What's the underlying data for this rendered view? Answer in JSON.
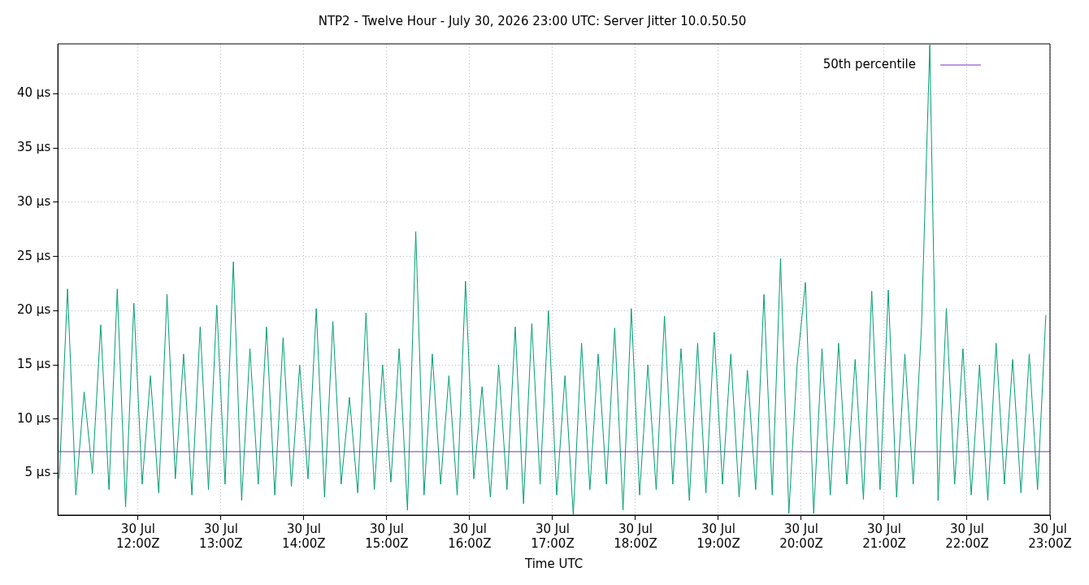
{
  "chart_data": {
    "type": "line",
    "title": "NTP2 - Twelve Hour - July 30, 2026 23:00 UTC: Server Jitter 10.0.50.50",
    "xlabel": "Time UTC",
    "series": [
      {
        "color": "#009e73",
        "x": [
          "2026-07-30T11:03",
          "2026-07-30T11:09",
          "2026-07-30T11:15",
          "2026-07-30T11:21",
          "2026-07-30T11:27",
          "2026-07-30T11:33",
          "2026-07-30T11:39",
          "2026-07-30T11:45",
          "2026-07-30T11:51",
          "2026-07-30T11:57",
          "2026-07-30T12:03",
          "2026-07-30T12:09",
          "2026-07-30T12:15",
          "2026-07-30T12:21",
          "2026-07-30T12:27",
          "2026-07-30T12:33",
          "2026-07-30T12:39",
          "2026-07-30T12:45",
          "2026-07-30T12:51",
          "2026-07-30T12:57",
          "2026-07-30T13:03",
          "2026-07-30T13:09",
          "2026-07-30T13:15",
          "2026-07-30T13:21",
          "2026-07-30T13:27",
          "2026-07-30T13:33",
          "2026-07-30T13:39",
          "2026-07-30T13:45",
          "2026-07-30T13:51",
          "2026-07-30T13:57",
          "2026-07-30T14:03",
          "2026-07-30T14:09",
          "2026-07-30T14:15",
          "2026-07-30T14:21",
          "2026-07-30T14:27",
          "2026-07-30T14:33",
          "2026-07-30T14:39",
          "2026-07-30T14:45",
          "2026-07-30T14:51",
          "2026-07-30T14:57",
          "2026-07-30T15:03",
          "2026-07-30T15:09",
          "2026-07-30T15:15",
          "2026-07-30T15:21",
          "2026-07-30T15:27",
          "2026-07-30T15:33",
          "2026-07-30T15:39",
          "2026-07-30T15:45",
          "2026-07-30T15:51",
          "2026-07-30T15:57",
          "2026-07-30T16:03",
          "2026-07-30T16:09",
          "2026-07-30T16:15",
          "2026-07-30T16:21",
          "2026-07-30T16:27",
          "2026-07-30T16:33",
          "2026-07-30T16:39",
          "2026-07-30T16:45",
          "2026-07-30T16:51",
          "2026-07-30T16:57",
          "2026-07-30T17:03",
          "2026-07-30T17:09",
          "2026-07-30T17:15",
          "2026-07-30T17:21",
          "2026-07-30T17:27",
          "2026-07-30T17:33",
          "2026-07-30T17:39",
          "2026-07-30T17:45",
          "2026-07-30T17:51",
          "2026-07-30T17:57",
          "2026-07-30T18:03",
          "2026-07-30T18:09",
          "2026-07-30T18:15",
          "2026-07-30T18:21",
          "2026-07-30T18:27",
          "2026-07-30T18:33",
          "2026-07-30T18:39",
          "2026-07-30T18:45",
          "2026-07-30T18:51",
          "2026-07-30T18:57",
          "2026-07-30T19:03",
          "2026-07-30T19:09",
          "2026-07-30T19:15",
          "2026-07-30T19:21",
          "2026-07-30T19:27",
          "2026-07-30T19:33",
          "2026-07-30T19:39",
          "2026-07-30T19:45",
          "2026-07-30T19:51",
          "2026-07-30T19:57",
          "2026-07-30T20:03",
          "2026-07-30T20:09",
          "2026-07-30T20:15",
          "2026-07-30T20:21",
          "2026-07-30T20:27",
          "2026-07-30T20:33",
          "2026-07-30T20:39",
          "2026-07-30T20:45",
          "2026-07-30T20:51",
          "2026-07-30T20:57",
          "2026-07-30T21:03",
          "2026-07-30T21:09",
          "2026-07-30T21:15",
          "2026-07-30T21:21",
          "2026-07-30T21:27",
          "2026-07-30T21:33",
          "2026-07-30T21:39",
          "2026-07-30T21:45",
          "2026-07-30T21:51",
          "2026-07-30T21:57",
          "2026-07-30T22:03",
          "2026-07-30T22:09",
          "2026-07-30T22:15",
          "2026-07-30T22:21",
          "2026-07-30T22:27",
          "2026-07-30T22:33",
          "2026-07-30T22:39",
          "2026-07-30T22:45",
          "2026-07-30T22:51",
          "2026-07-30T22:57"
        ],
        "values": [
          4.5,
          22.0,
          3.0,
          12.5,
          5.0,
          18.7,
          3.5,
          22.0,
          1.9,
          20.7,
          4.0,
          14.0,
          3.2,
          21.5,
          4.5,
          16.0,
          3.0,
          18.5,
          3.5,
          20.5,
          4.0,
          24.5,
          2.5,
          16.5,
          4.0,
          18.5,
          3.0,
          17.5,
          3.8,
          15.0,
          4.5,
          20.2,
          2.8,
          19.0,
          4.0,
          12.0,
          3.2,
          19.8,
          3.5,
          15.0,
          4.2,
          16.5,
          1.6,
          27.3,
          3.0,
          16.0,
          4.0,
          14.0,
          3.0,
          22.7,
          4.5,
          13.0,
          2.8,
          15.0,
          3.5,
          18.5,
          2.2,
          18.8,
          4.0,
          20.0,
          3.0,
          14.0,
          1.2,
          17.0,
          3.5,
          16.0,
          4.0,
          18.4,
          1.6,
          20.2,
          3.0,
          15.0,
          3.5,
          19.5,
          4.0,
          16.5,
          2.5,
          17.0,
          3.2,
          18.0,
          4.0,
          16.0,
          2.8,
          14.5,
          3.5,
          21.5,
          3.0,
          24.8,
          1.3,
          15.0,
          22.6,
          1.3,
          16.5,
          3.0,
          17.0,
          4.0,
          15.5,
          2.6,
          21.8,
          3.5,
          21.9,
          2.8,
          16.0,
          4.0,
          18.5,
          44.5,
          2.5,
          20.2,
          4.0,
          16.5,
          3.0,
          15.0,
          2.5,
          17.0,
          4.0,
          15.5,
          3.2,
          16.0,
          3.5,
          19.6
        ]
      }
    ],
    "ref_lines": [
      {
        "axis": "y",
        "value": 7,
        "label": "50th percentile",
        "color": "#7b2fbe"
      }
    ],
    "xlim": [
      "2026-07-30T11:02",
      "2026-07-30T23:00"
    ],
    "xticks": [
      {
        "value": "2026-07-30T12:00",
        "label": "30 Jul 12:00Z"
      },
      {
        "value": "2026-07-30T13:00",
        "label": "30 Jul 13:00Z"
      },
      {
        "value": "2026-07-30T14:00",
        "label": "30 Jul 14:00Z"
      },
      {
        "value": "2026-07-30T15:00",
        "label": "30 Jul 15:00Z"
      },
      {
        "value": "2026-07-30T16:00",
        "label": "30 Jul 16:00Z"
      },
      {
        "value": "2026-07-30T17:00",
        "label": "30 Jul 17:00Z"
      },
      {
        "value": "2026-07-30T18:00",
        "label": "30 Jul 18:00Z"
      },
      {
        "value": "2026-07-30T19:00",
        "label": "30 Jul 19:00Z"
      },
      {
        "value": "2026-07-30T20:00",
        "label": "30 Jul 20:00Z"
      },
      {
        "value": "2026-07-30T21:00",
        "label": "30 Jul 21:00Z"
      },
      {
        "value": "2026-07-30T22:00",
        "label": "30 Jul 22:00Z"
      },
      {
        "value": "2026-07-30T23:00",
        "label": "30 Jul 23:00Z"
      }
    ],
    "ylim": [
      1.15,
      44.6
    ],
    "yticks": [
      {
        "value": 5,
        "label": "5 µs"
      },
      {
        "value": 10,
        "label": "10 µs"
      },
      {
        "value": 15,
        "label": "15 µs"
      },
      {
        "value": 20,
        "label": "20 µs"
      },
      {
        "value": 25,
        "label": "25 µs"
      },
      {
        "value": 30,
        "label": "30 µs"
      },
      {
        "value": 35,
        "label": "35 µs"
      },
      {
        "value": 40,
        "label": "40 µs"
      }
    ],
    "grid": true,
    "legend": "top right",
    "marker": "none",
    "line_style": "solid"
  }
}
